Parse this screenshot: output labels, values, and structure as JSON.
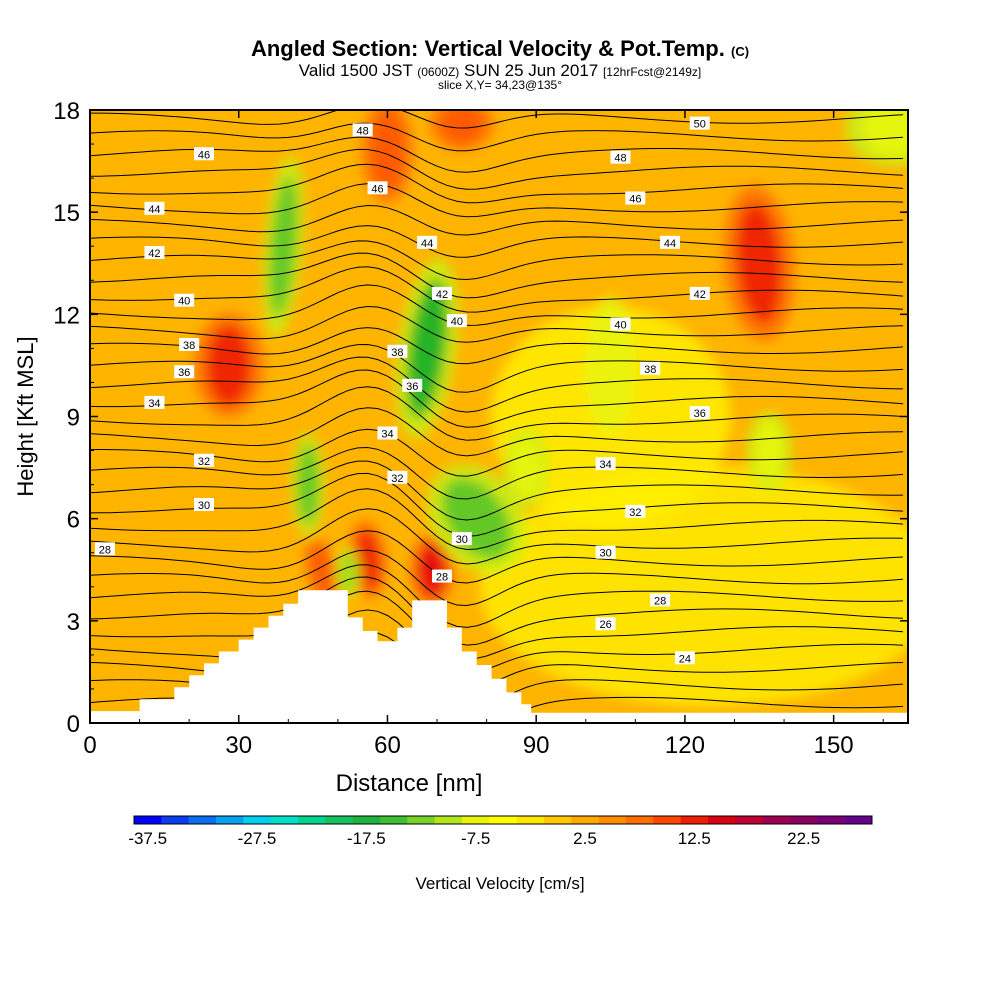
{
  "header": {
    "title": "Angled Section: Vertical Velocity & Pot.Temp.",
    "title_unit": "(C)",
    "valid_prefix": "Valid 1500 JST",
    "valid_zulu": "(0600Z)",
    "valid_date": "SUN 25 Jun 2017",
    "forecast": "[12hrFcst@2149z]",
    "slice": "slice X,Y= 34,23@135°"
  },
  "colorbar": {
    "label": "Vertical Velocity [cm/s]",
    "tick_labels": [
      "-37.5",
      "-27.5",
      "-17.5",
      "-7.5",
      "2.5",
      "12.5",
      "22.5"
    ],
    "colors": [
      "#0000ff",
      "#0a3cf0",
      "#0a6ef0",
      "#08a0f0",
      "#00d0f0",
      "#00e0c8",
      "#00d48c",
      "#14c060",
      "#1eb43c",
      "#3cc032",
      "#78d228",
      "#b4e61e",
      "#e6f50a",
      "#ffff00",
      "#ffe600",
      "#ffc800",
      "#ffaa00",
      "#ff8c00",
      "#ff6e00",
      "#ff4600",
      "#f01e00",
      "#dc0014",
      "#c00032",
      "#a00050",
      "#8c0064",
      "#7a007a",
      "#64008c"
    ]
  },
  "chart_data": {
    "type": "heatmap",
    "xlabel": "Distance [nm]",
    "ylabel": "Height [Kft MSL]",
    "xlim": [
      0,
      165
    ],
    "ylim": [
      0,
      18
    ],
    "x_ticks": [
      0,
      30,
      60,
      90,
      120,
      150
    ],
    "y_ticks": [
      0,
      3,
      6,
      9,
      12,
      15,
      18
    ],
    "contour_variable": "Pot.Temp. (C)",
    "contour_levels": [
      24,
      26,
      28,
      30,
      32,
      34,
      36,
      38,
      40,
      42,
      44,
      46,
      48,
      50
    ],
    "contour_labels": [
      {
        "text": "28",
        "x": 3,
        "y": 5.1
      },
      {
        "text": "30",
        "x": 23,
        "y": 6.4
      },
      {
        "text": "32",
        "x": 23,
        "y": 7.7
      },
      {
        "text": "34",
        "x": 13,
        "y": 9.4
      },
      {
        "text": "36",
        "x": 19,
        "y": 10.3
      },
      {
        "text": "38",
        "x": 20,
        "y": 11.1
      },
      {
        "text": "40",
        "x": 19,
        "y": 12.4
      },
      {
        "text": "42",
        "x": 13,
        "y": 13.8
      },
      {
        "text": "44",
        "x": 13,
        "y": 15.1
      },
      {
        "text": "46",
        "x": 23,
        "y": 16.7
      },
      {
        "text": "48",
        "x": 55,
        "y": 17.4
      },
      {
        "text": "46",
        "x": 58,
        "y": 15.7
      },
      {
        "text": "44",
        "x": 68,
        "y": 14.1
      },
      {
        "text": "42",
        "x": 71,
        "y": 12.6
      },
      {
        "text": "40",
        "x": 74,
        "y": 11.8
      },
      {
        "text": "38",
        "x": 62,
        "y": 10.9
      },
      {
        "text": "36",
        "x": 65,
        "y": 9.9
      },
      {
        "text": "34",
        "x": 60,
        "y": 8.5
      },
      {
        "text": "32",
        "x": 62,
        "y": 7.2
      },
      {
        "text": "30",
        "x": 75,
        "y": 5.4
      },
      {
        "text": "28",
        "x": 71,
        "y": 4.3
      },
      {
        "text": "50",
        "x": 123,
        "y": 17.6
      },
      {
        "text": "48",
        "x": 107,
        "y": 16.6
      },
      {
        "text": "46",
        "x": 110,
        "y": 15.4
      },
      {
        "text": "44",
        "x": 117,
        "y": 14.1
      },
      {
        "text": "42",
        "x": 123,
        "y": 12.6
      },
      {
        "text": "40",
        "x": 107,
        "y": 11.7
      },
      {
        "text": "38",
        "x": 113,
        "y": 10.4
      },
      {
        "text": "36",
        "x": 123,
        "y": 9.1
      },
      {
        "text": "34",
        "x": 104,
        "y": 7.6
      },
      {
        "text": "32",
        "x": 110,
        "y": 6.2
      },
      {
        "text": "30",
        "x": 104,
        "y": 5.0
      },
      {
        "text": "28",
        "x": 115,
        "y": 3.6
      },
      {
        "text": "26",
        "x": 104,
        "y": 2.9
      },
      {
        "text": "24",
        "x": 120,
        "y": 1.9
      }
    ],
    "vertical_velocity_features": [
      {
        "type": "updraft",
        "x": 28,
        "y": 10.5,
        "value": 15
      },
      {
        "type": "updraft",
        "x": 135,
        "y": 13.5,
        "value": 15
      },
      {
        "type": "updraft",
        "x": 60,
        "y": 16.8,
        "value": 12
      },
      {
        "type": "updraft",
        "x": 75,
        "y": 17.6,
        "value": 12
      },
      {
        "type": "updraft",
        "x": 56,
        "y": 4.8,
        "value": 15
      },
      {
        "type": "updraft",
        "x": 69,
        "y": 4.5,
        "value": 17
      },
      {
        "type": "updraft",
        "x": 47,
        "y": 4.4,
        "value": 12
      },
      {
        "type": "downdraft",
        "x": 68,
        "y": 11,
        "value": -17
      },
      {
        "type": "downdraft",
        "x": 78,
        "y": 6,
        "value": -14
      },
      {
        "type": "downdraft",
        "x": 39,
        "y": 14,
        "value": -12
      },
      {
        "type": "downdraft",
        "x": 44,
        "y": 7,
        "value": -12
      },
      {
        "type": "downdraft",
        "x": 52,
        "y": 4.4,
        "value": -10
      },
      {
        "type": "downdraft",
        "x": 137,
        "y": 8,
        "value": -6
      },
      {
        "type": "downdraft",
        "x": 88,
        "y": 7.5,
        "value": -6
      },
      {
        "type": "downdraft",
        "x": 162,
        "y": 17.5,
        "value": -5
      }
    ],
    "terrain_profile": [
      [
        0,
        0.35
      ],
      [
        10,
        0.35
      ],
      [
        10,
        0.7
      ],
      [
        17,
        0.7
      ],
      [
        17,
        1.05
      ],
      [
        20,
        1.05
      ],
      [
        20,
        1.4
      ],
      [
        23,
        1.4
      ],
      [
        23,
        1.75
      ],
      [
        26,
        1.75
      ],
      [
        26,
        2.1
      ],
      [
        30,
        2.1
      ],
      [
        30,
        2.45
      ],
      [
        33,
        2.45
      ],
      [
        33,
        2.8
      ],
      [
        36,
        2.8
      ],
      [
        36,
        3.15
      ],
      [
        39,
        3.15
      ],
      [
        39,
        3.5
      ],
      [
        42,
        3.5
      ],
      [
        42,
        3.9
      ],
      [
        52,
        3.9
      ],
      [
        52,
        3.1
      ],
      [
        55,
        3.1
      ],
      [
        55,
        2.7
      ],
      [
        58,
        2.7
      ],
      [
        58,
        2.4
      ],
      [
        62,
        2.4
      ],
      [
        62,
        2.8
      ],
      [
        65,
        2.8
      ],
      [
        65,
        3.6
      ],
      [
        72,
        3.6
      ],
      [
        72,
        2.8
      ],
      [
        75,
        2.8
      ],
      [
        75,
        2.1
      ],
      [
        78,
        2.1
      ],
      [
        78,
        1.7
      ],
      [
        81,
        1.7
      ],
      [
        81,
        1.3
      ],
      [
        84,
        1.3
      ],
      [
        84,
        0.9
      ],
      [
        87,
        0.9
      ],
      [
        87,
        0.55
      ],
      [
        89,
        0.55
      ],
      [
        89,
        0.3
      ],
      [
        165,
        0.3
      ]
    ]
  }
}
